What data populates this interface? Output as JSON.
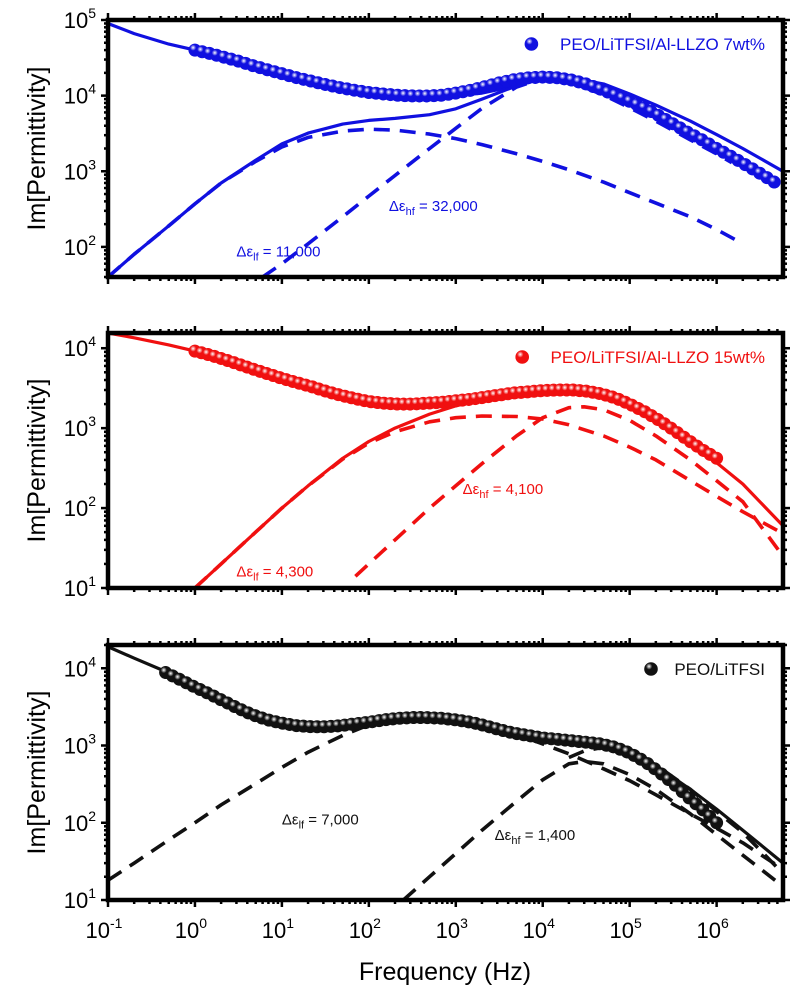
{
  "chart_data": [
    {
      "type": "line",
      "panel": "top",
      "title": "",
      "xlabel": "",
      "ylabel": "Im[Permittivity]",
      "xscale": "log",
      "yscale": "log",
      "xlim": [
        0.1,
        5800000
      ],
      "ylim": [
        40,
        100000
      ],
      "color": "#1010e0",
      "yticks": [
        {
          "base": "10",
          "exp": "2",
          "value": 100
        },
        {
          "base": "10",
          "exp": "3",
          "value": 1000
        },
        {
          "base": "10",
          "exp": "4",
          "value": 10000
        },
        {
          "base": "10",
          "exp": "5",
          "value": 100000
        }
      ],
      "legend": {
        "label": "PEO/LiTFSI/Al-LLZO 7wt%",
        "position": "top-right"
      },
      "annotations": [
        {
          "symbol": "Δε",
          "sub": "lf",
          "text": " = 11,000",
          "x": 3.0,
          "y": 75
        },
        {
          "symbol": "Δε",
          "sub": "hf",
          "text": " = 32,000",
          "x": 170,
          "y": 300
        }
      ],
      "series": [
        {
          "name": "data",
          "style": "markers",
          "x": [
            1,
            1.5,
            2.2,
            3.2,
            4.6,
            6.8,
            10,
            15,
            22,
            32,
            46,
            68,
            100,
            150,
            220,
            320,
            460,
            680,
            1000,
            1500,
            2200,
            3200,
            4600,
            6800,
            10000,
            15000,
            22000,
            32000,
            46000,
            68000,
            100000,
            150000,
            220000,
            320000,
            460000,
            680000,
            1000000,
            1500000,
            2200000,
            3200000,
            4600000
          ],
          "y": [
            40000,
            36000,
            32000,
            28500,
            25000,
            22000,
            19500,
            17200,
            15500,
            14000,
            12800,
            11800,
            11000,
            10500,
            10100,
            9900,
            9900,
            10100,
            10800,
            11800,
            13200,
            14800,
            16200,
            17200,
            17600,
            17200,
            16000,
            14200,
            12200,
            10200,
            8400,
            6800,
            5400,
            4200,
            3300,
            2600,
            2000,
            1550,
            1200,
            930,
            720
          ]
        },
        {
          "name": "fit",
          "style": "solid",
          "x": [
            0.1,
            0.2,
            0.5,
            1,
            2,
            5,
            10,
            20,
            50,
            100,
            200,
            500,
            1000,
            2000,
            5000,
            10000,
            20000,
            50000,
            100000,
            200000,
            500000,
            1000000,
            2000000,
            5800000
          ],
          "y": [
            90000,
            66000,
            48000,
            40000,
            33000,
            24500,
            19500,
            16000,
            12800,
            11200,
            10300,
            9800,
            10000,
            10800,
            13500,
            17000,
            17300,
            14300,
            10500,
            7500,
            4600,
            3050,
            2000,
            1000
          ]
        },
        {
          "name": "lf-component-fit",
          "style": "solid",
          "x": [
            0.1,
            0.2,
            0.5,
            1,
            2,
            5,
            10,
            20,
            50,
            100,
            200,
            500,
            1000,
            2000,
            5000,
            10000
          ],
          "y": [
            40,
            80,
            190,
            370,
            700,
            1400,
            2300,
            3200,
            4200,
            4700,
            5000,
            5600,
            6700,
            9000,
            13500,
            17000
          ]
        },
        {
          "name": "lf-relaxation",
          "style": "dashed",
          "x": [
            0.1,
            0.2,
            0.5,
            1,
            2,
            5,
            10,
            20,
            50,
            100,
            200,
            500,
            1000,
            2000,
            5000,
            10000,
            20000,
            50000,
            100000,
            200000,
            500000,
            1000000,
            2000000
          ],
          "y": [
            40,
            80,
            190,
            370,
            700,
            1350,
            2100,
            2800,
            3400,
            3600,
            3500,
            3100,
            2700,
            2250,
            1700,
            1350,
            1050,
            720,
            520,
            380,
            250,
            170,
            110
          ]
        },
        {
          "name": "hf-relaxation",
          "style": "dashed",
          "x": [
            6,
            10,
            20,
            50,
            100,
            200,
            500,
            1000,
            2000,
            5000,
            10000,
            20000,
            50000,
            100000,
            200000,
            500000,
            1000000,
            1500000
          ],
          "y": [
            40,
            60,
            110,
            250,
            470,
            880,
            2000,
            3700,
            6800,
            13000,
            17000,
            15500,
            10200,
            6900,
            4600,
            2600,
            1700,
            1300
          ]
        }
      ]
    },
    {
      "type": "line",
      "panel": "middle",
      "title": "",
      "xlabel": "",
      "ylabel": "Im[Permittivity]",
      "xscale": "log",
      "yscale": "log",
      "xlim": [
        0.1,
        5800000
      ],
      "ylim": [
        10,
        15500
      ],
      "color": "#f01010",
      "yticks": [
        {
          "base": "10",
          "exp": "1",
          "value": 10
        },
        {
          "base": "10",
          "exp": "2",
          "value": 100
        },
        {
          "base": "10",
          "exp": "3",
          "value": 1000
        },
        {
          "base": "10",
          "exp": "4",
          "value": 10000
        }
      ],
      "legend": {
        "label": "PEO/LiTFSI/Al-LLZO 15wt%",
        "position": "top-right"
      },
      "annotations": [
        {
          "symbol": "Δε",
          "sub": "lf",
          "text": " = 4,300",
          "x": 3.0,
          "y": 14
        },
        {
          "symbol": "Δε",
          "sub": "hf",
          "text": " = 4,100",
          "x": 1200,
          "y": 150
        }
      ],
      "series": [
        {
          "name": "data",
          "style": "markers",
          "x": [
            1,
            1.5,
            2.2,
            3.2,
            4.6,
            6.8,
            10,
            15,
            22,
            32,
            46,
            68,
            100,
            150,
            220,
            320,
            460,
            680,
            1000,
            1500,
            2200,
            3200,
            4600,
            6800,
            10000,
            15000,
            22000,
            32000,
            46000,
            68000,
            100000,
            150000,
            220000,
            320000,
            460000,
            680000,
            1000000
          ],
          "y": [
            9200,
            8200,
            7200,
            6300,
            5500,
            4800,
            4200,
            3700,
            3300,
            2900,
            2600,
            2350,
            2150,
            2050,
            2000,
            2000,
            2050,
            2100,
            2200,
            2300,
            2450,
            2600,
            2750,
            2850,
            2950,
            3000,
            3000,
            2900,
            2700,
            2400,
            2000,
            1600,
            1250,
            950,
            720,
            540,
            420
          ]
        },
        {
          "name": "fit",
          "style": "solid",
          "x": [
            0.1,
            0.2,
            0.5,
            1,
            2,
            5,
            10,
            20,
            50,
            100,
            200,
            500,
            1000,
            2000,
            5000,
            10000,
            20000,
            50000,
            100000,
            200000,
            500000,
            1000000,
            2000000,
            5800000
          ],
          "y": [
            15500,
            13500,
            11000,
            9200,
            7600,
            5600,
            4200,
            3300,
            2500,
            2150,
            2000,
            2000,
            2200,
            2450,
            2750,
            2950,
            3000,
            2700,
            2000,
            1300,
            700,
            370,
            200,
            60
          ]
        },
        {
          "name": "lf-component-fit",
          "style": "solid",
          "x": [
            1,
            2,
            5,
            10,
            20,
            50,
            100,
            200,
            500,
            1000,
            2000,
            5000,
            10000
          ],
          "y": [
            10,
            20,
            50,
            100,
            190,
            420,
            680,
            1000,
            1500,
            1900,
            2300,
            2700,
            2900
          ]
        },
        {
          "name": "lf-relaxation",
          "style": "dashed",
          "x": [
            1,
            2,
            5,
            10,
            20,
            50,
            100,
            200,
            500,
            1000,
            2000,
            5000,
            10000,
            20000,
            50000,
            100000,
            200000,
            500000,
            1000000,
            2000000,
            5800000
          ],
          "y": [
            10,
            20,
            50,
            100,
            190,
            410,
            650,
            900,
            1200,
            1350,
            1420,
            1400,
            1300,
            1100,
            800,
            580,
            400,
            220,
            140,
            90,
            48
          ]
        },
        {
          "name": "hf-relaxation",
          "style": "dashed",
          "x": [
            70,
            100,
            200,
            500,
            1000,
            2000,
            5000,
            10000,
            20000,
            30000,
            50000,
            100000,
            200000,
            500000,
            1000000,
            2000000,
            5800000
          ],
          "y": [
            14,
            20,
            40,
            100,
            190,
            360,
            800,
            1350,
            1800,
            1850,
            1700,
            1250,
            800,
            400,
            220,
            120,
            25
          ]
        }
      ]
    },
    {
      "type": "line",
      "panel": "bottom",
      "title": "",
      "xlabel": "Frequency (Hz)",
      "ylabel": "Im[Permittivity]",
      "xscale": "log",
      "yscale": "log",
      "xlim": [
        0.1,
        5800000
      ],
      "ylim": [
        10,
        20000
      ],
      "color": "#111111",
      "xticks": [
        {
          "base": "10",
          "exp": "-1",
          "value": 0.1
        },
        {
          "base": "10",
          "exp": "0",
          "value": 1
        },
        {
          "base": "10",
          "exp": "1",
          "value": 10
        },
        {
          "base": "10",
          "exp": "2",
          "value": 100
        },
        {
          "base": "10",
          "exp": "3",
          "value": 1000
        },
        {
          "base": "10",
          "exp": "4",
          "value": 10000
        },
        {
          "base": "10",
          "exp": "5",
          "value": 100000
        },
        {
          "base": "10",
          "exp": "6",
          "value": 1000000
        }
      ],
      "yticks": [
        {
          "base": "10",
          "exp": "1",
          "value": 10
        },
        {
          "base": "10",
          "exp": "2",
          "value": 100
        },
        {
          "base": "10",
          "exp": "3",
          "value": 1000
        },
        {
          "base": "10",
          "exp": "4",
          "value": 10000
        }
      ],
      "legend": {
        "label": "PEO/LiTFSI",
        "position": "top-right"
      },
      "annotations": [
        {
          "symbol": "Δε",
          "sub": "lf",
          "text": " = 7,000",
          "x": 10,
          "y": 95
        },
        {
          "symbol": "Δε",
          "sub": "hf",
          "text": " = 1,400",
          "x": 2800,
          "y": 60
        }
      ],
      "series": [
        {
          "name": "data",
          "style": "markers",
          "x": [
            0.46,
            0.68,
            1,
            1.5,
            2.2,
            3.2,
            4.6,
            6.8,
            10,
            15,
            22,
            32,
            46,
            68,
            100,
            150,
            220,
            320,
            460,
            680,
            1000,
            1500,
            2200,
            3200,
            4600,
            6800,
            10000,
            15000,
            22000,
            32000,
            46000,
            68000,
            100000,
            150000,
            220000,
            320000,
            460000,
            680000,
            1000000
          ],
          "y": [
            8800,
            7100,
            5700,
            4600,
            3700,
            3000,
            2500,
            2150,
            1950,
            1800,
            1750,
            1750,
            1800,
            1900,
            2000,
            2150,
            2250,
            2300,
            2300,
            2250,
            2150,
            2000,
            1800,
            1600,
            1450,
            1350,
            1250,
            1200,
            1150,
            1100,
            1050,
            950,
            800,
            620,
            450,
            320,
            220,
            150,
            100
          ]
        },
        {
          "name": "fit",
          "style": "solid",
          "x": [
            0.1,
            0.2,
            0.5,
            1,
            2,
            5,
            10,
            20,
            50,
            100,
            200,
            500,
            1000,
            2000,
            5000,
            10000,
            20000,
            50000,
            100000,
            200000,
            500000,
            1000000,
            2000000,
            5800000
          ],
          "y": [
            19000,
            13500,
            8700,
            5800,
            3800,
            2500,
            1950,
            1780,
            1780,
            1950,
            2200,
            2320,
            2200,
            1850,
            1450,
            1250,
            1180,
            1080,
            850,
            550,
            270,
            150,
            80,
            30
          ]
        },
        {
          "name": "lf-relaxation",
          "style": "dashed",
          "x": [
            0.1,
            0.2,
            0.5,
            1,
            2,
            5,
            10,
            20,
            50,
            100,
            200,
            500,
            1000,
            2000,
            5000,
            10000,
            20000,
            50000,
            100000,
            200000,
            500000,
            1000000,
            2000000,
            5800000
          ],
          "y": [
            18,
            30,
            60,
            100,
            170,
            320,
            520,
            820,
            1350,
            1850,
            2200,
            2300,
            2150,
            1850,
            1400,
            1050,
            780,
            500,
            350,
            230,
            130,
            85,
            55,
            25
          ]
        },
        {
          "name": "hf-relaxation",
          "style": "dashed",
          "x": [
            250,
            500,
            1000,
            2000,
            5000,
            10000,
            20000,
            30000,
            50000,
            100000,
            200000,
            500000,
            1000000,
            2000000,
            5800000
          ],
          "y": [
            10,
            20,
            40,
            80,
            190,
            360,
            580,
            620,
            580,
            420,
            270,
            130,
            70,
            38,
            15
          ]
        },
        {
          "name": "hf-component-fit",
          "style": "dashed",
          "x": [
            20000,
            30000,
            50000,
            100000,
            200000,
            500000,
            1000000,
            2000000,
            5800000
          ],
          "y": [
            700,
            850,
            950,
            850,
            560,
            270,
            140,
            75,
            22
          ]
        }
      ]
    }
  ]
}
